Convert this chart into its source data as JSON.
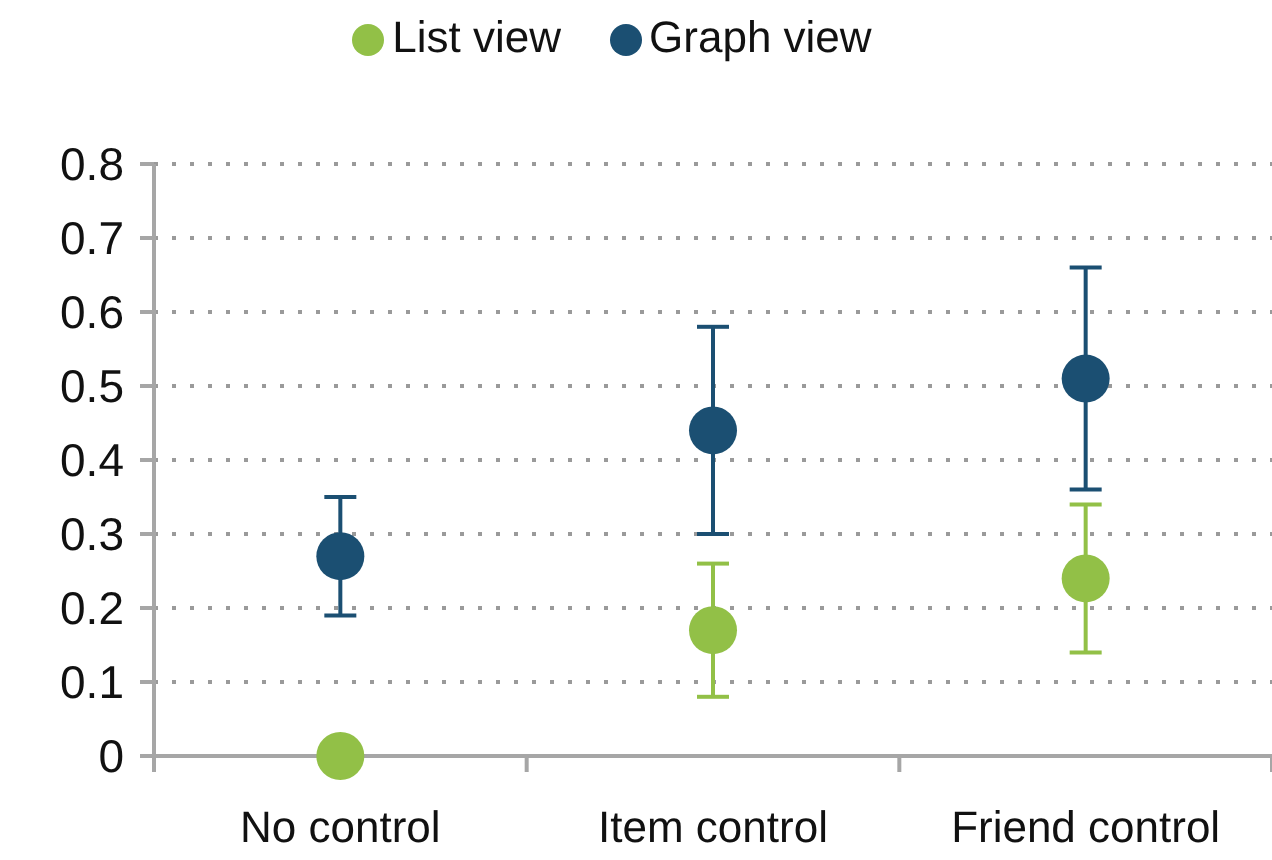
{
  "chart_data": {
    "type": "scatter",
    "categories": [
      "No control",
      "Item control",
      "Friend control"
    ],
    "series": [
      {
        "name": "List view",
        "color": "#92c047",
        "values": [
          0,
          0.17,
          0.24
        ],
        "errors": [
          null,
          0.09,
          0.1
        ]
      },
      {
        "name": "Graph view",
        "color": "#1b4f72",
        "values": [
          0.27,
          0.44,
          0.51
        ],
        "errors": [
          0.08,
          0.14,
          0.15
        ]
      }
    ],
    "ylim": [
      0,
      0.8
    ],
    "yticks": [
      0,
      0.1,
      0.2,
      0.3,
      0.4,
      0.5,
      0.6,
      0.7,
      0.8
    ],
    "grid": "y",
    "legend": "top",
    "marker": "circle"
  }
}
